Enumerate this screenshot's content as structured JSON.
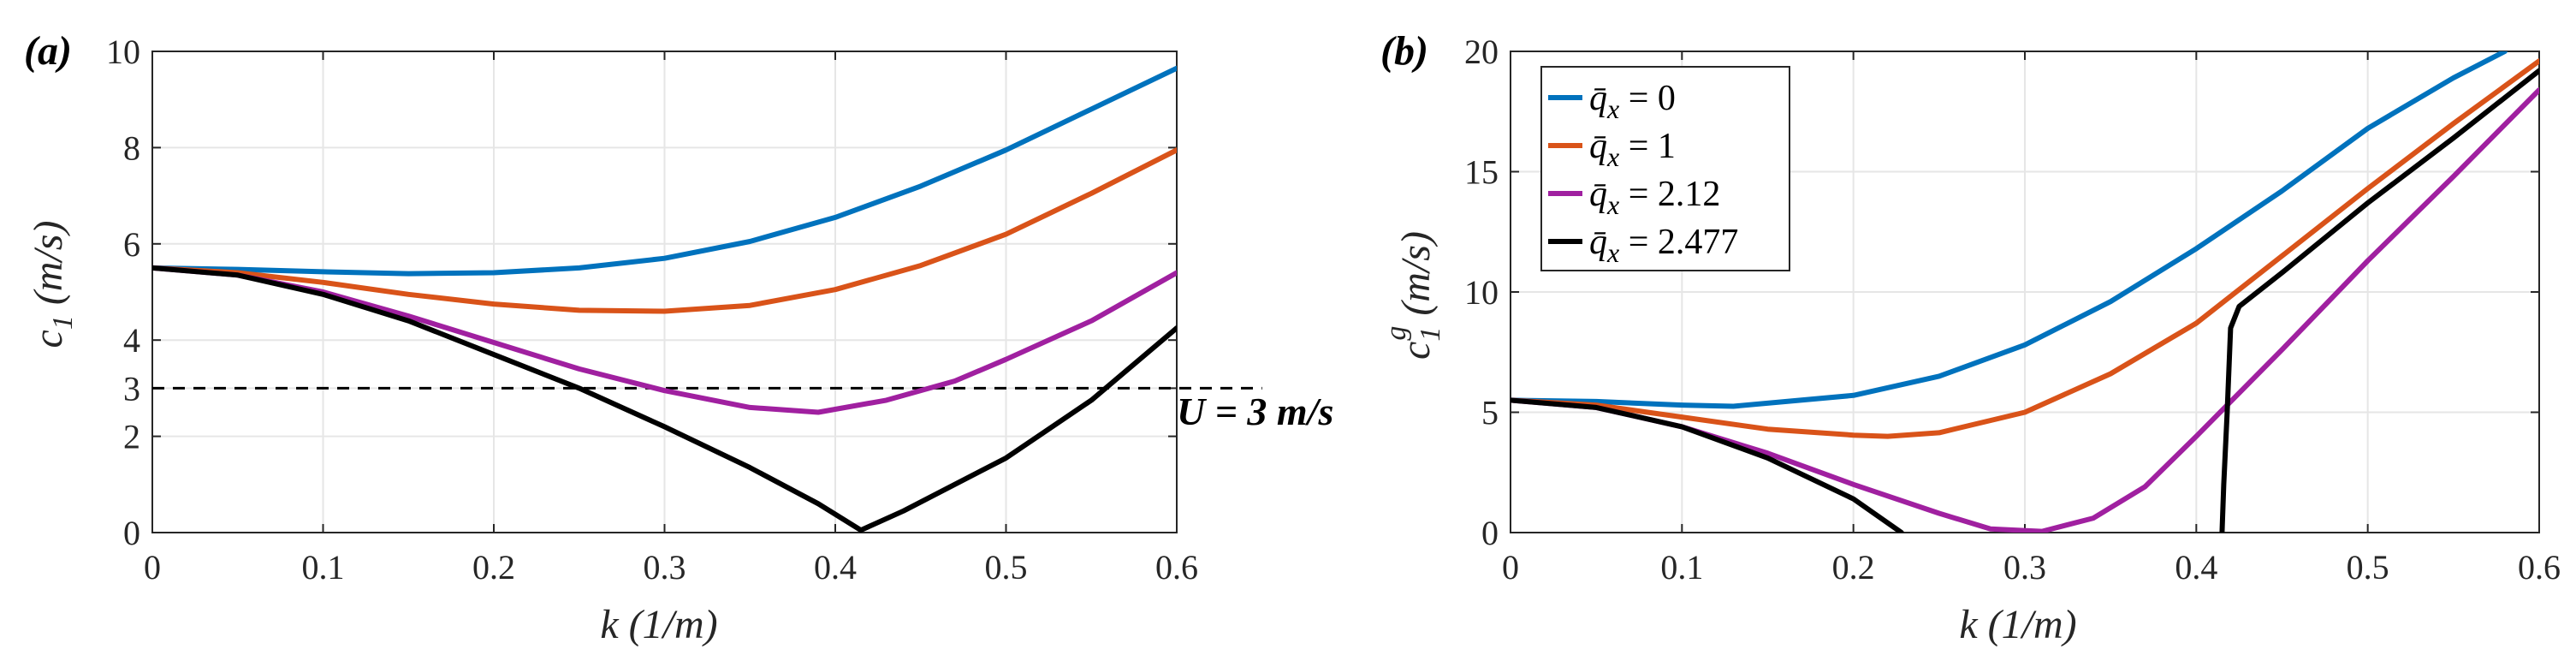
{
  "chart_data": [
    {
      "type": "line",
      "panel_label": "(a)",
      "xlabel": "k (1/m)",
      "ylabel_main": "c",
      "ylabel_sub": "1",
      "ylabel_units": "(m/s)",
      "xlim": [
        0,
        0.6
      ],
      "ylim": [
        0,
        10
      ],
      "xticks": [
        0,
        0.1,
        0.2,
        0.3,
        0.4,
        0.5,
        0.6
      ],
      "xtick_labels": [
        "0",
        "0.1",
        "0.2",
        "0.3",
        "0.4",
        "0.5",
        "0.6"
      ],
      "yticks": [
        0,
        2,
        3,
        4,
        6,
        8,
        10
      ],
      "ytick_labels": [
        "0",
        "2",
        "3",
        "4",
        "6",
        "8",
        "10"
      ],
      "grid": true,
      "series": [
        {
          "name": "q̄x = 0",
          "color": "#0072BD",
          "x": [
            0,
            0.05,
            0.1,
            0.15,
            0.2,
            0.25,
            0.3,
            0.35,
            0.4,
            0.45,
            0.5,
            0.55,
            0.6
          ],
          "y": [
            5.5,
            5.47,
            5.42,
            5.38,
            5.4,
            5.5,
            5.7,
            6.05,
            6.55,
            7.2,
            7.95,
            8.8,
            9.65
          ]
        },
        {
          "name": "q̄x = 1",
          "color": "#D95319",
          "x": [
            0,
            0.05,
            0.1,
            0.15,
            0.2,
            0.25,
            0.3,
            0.35,
            0.4,
            0.45,
            0.5,
            0.55,
            0.6
          ],
          "y": [
            5.5,
            5.4,
            5.2,
            4.95,
            4.75,
            4.62,
            4.6,
            4.72,
            5.05,
            5.55,
            6.2,
            7.05,
            7.95
          ]
        },
        {
          "name": "q̄x = 2.12",
          "color": "#A020A0",
          "x": [
            0,
            0.05,
            0.1,
            0.15,
            0.2,
            0.25,
            0.3,
            0.35,
            0.39,
            0.43,
            0.47,
            0.5,
            0.55,
            0.6
          ],
          "y": [
            5.5,
            5.35,
            5.0,
            4.5,
            3.95,
            3.4,
            2.95,
            2.6,
            2.5,
            2.75,
            3.15,
            3.6,
            4.4,
            5.4
          ]
        },
        {
          "name": "q̄x = 2.477",
          "color": "#000000",
          "x": [
            0,
            0.05,
            0.1,
            0.15,
            0.2,
            0.25,
            0.3,
            0.35,
            0.39,
            0.415,
            0.44,
            0.5,
            0.55,
            0.6
          ],
          "y": [
            5.5,
            5.35,
            4.95,
            4.4,
            3.7,
            3.0,
            2.2,
            1.35,
            0.6,
            0.05,
            0.45,
            1.55,
            2.75,
            4.25
          ]
        }
      ],
      "reference_line": {
        "y": 3,
        "x_end": 0.65,
        "style": "dashed",
        "color": "#000000",
        "label": "U = 3 m/s"
      }
    },
    {
      "type": "line",
      "panel_label": "(b)",
      "xlabel": "k (1/m)",
      "ylabel_main": "c",
      "ylabel_sub": "1",
      "ylabel_sup": "g",
      "ylabel_units": "(m/s)",
      "xlim": [
        0,
        0.6
      ],
      "ylim": [
        0,
        20
      ],
      "xticks": [
        0,
        0.1,
        0.2,
        0.3,
        0.4,
        0.5,
        0.6
      ],
      "xtick_labels": [
        "0",
        "0.1",
        "0.2",
        "0.3",
        "0.4",
        "0.5",
        "0.6"
      ],
      "yticks": [
        0,
        5,
        10,
        15,
        20
      ],
      "ytick_labels": [
        "0",
        "5",
        "10",
        "15",
        "20"
      ],
      "grid": true,
      "legend": {
        "placement": "top-left",
        "entries": [
          {
            "symbol": "q̄",
            "sub": "x",
            "rest": " = 0",
            "color": "#0072BD"
          },
          {
            "symbol": "q̄",
            "sub": "x",
            "rest": " = 1",
            "color": "#D95319"
          },
          {
            "symbol": "q̄",
            "sub": "x",
            "rest": " = 2.12",
            "color": "#A020A0"
          },
          {
            "symbol": "q̄",
            "sub": "x",
            "rest": " = 2.477",
            "color": "#000000"
          }
        ]
      },
      "series": [
        {
          "name": "q̄x = 0",
          "color": "#0072BD",
          "segments": [
            {
              "x": [
                0,
                0.05,
                0.1,
                0.13,
                0.2,
                0.25,
                0.3,
                0.35,
                0.4,
                0.45,
                0.5,
                0.55,
                0.58
              ],
              "y": [
                5.5,
                5.45,
                5.3,
                5.25,
                5.7,
                6.5,
                7.8,
                9.6,
                11.8,
                14.2,
                16.8,
                18.9,
                20.0
              ]
            }
          ]
        },
        {
          "name": "q̄x = 1",
          "color": "#D95319",
          "segments": [
            {
              "x": [
                0,
                0.05,
                0.1,
                0.15,
                0.2,
                0.22,
                0.25,
                0.3,
                0.35,
                0.4,
                0.45,
                0.5,
                0.55,
                0.6
              ],
              "y": [
                5.5,
                5.3,
                4.8,
                4.3,
                4.05,
                4.0,
                4.15,
                5.0,
                6.6,
                8.7,
                11.5,
                14.3,
                17.0,
                19.6
              ]
            }
          ]
        },
        {
          "name": "q̄x = 2.12",
          "color": "#A020A0",
          "segments": [
            {
              "x": [
                0,
                0.05,
                0.1,
                0.15,
                0.2,
                0.25,
                0.28,
                0.31,
                0.34,
                0.37,
                0.4,
                0.45,
                0.5,
                0.55,
                0.6
              ],
              "y": [
                5.5,
                5.2,
                4.4,
                3.3,
                2.0,
                0.8,
                0.15,
                0.05,
                0.6,
                1.9,
                4.0,
                7.6,
                11.3,
                14.8,
                18.4
              ]
            }
          ]
        },
        {
          "name": "q̄x = 2.477",
          "color": "#000000",
          "segments": [
            {
              "x": [
                0,
                0.05,
                0.1,
                0.15,
                0.2,
                0.228
              ],
              "y": [
                5.5,
                5.2,
                4.4,
                3.1,
                1.4,
                0.0
              ]
            },
            {
              "x": [
                0.415,
                0.416,
                0.418,
                0.42,
                0.425,
                0.45,
                0.5,
                0.55,
                0.6
              ],
              "y": [
                0.0,
                2.0,
                5.0,
                8.5,
                9.4,
                10.8,
                13.7,
                16.4,
                19.2
              ]
            }
          ]
        }
      ]
    }
  ]
}
